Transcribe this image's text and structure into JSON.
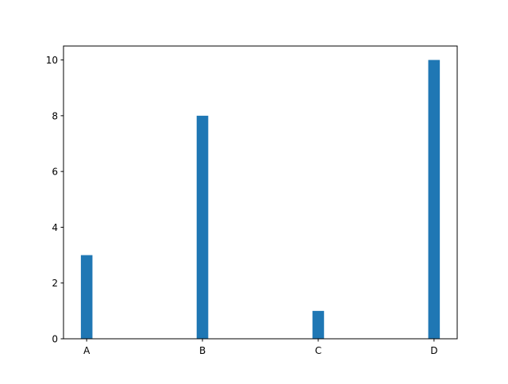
{
  "chart_data": {
    "type": "bar",
    "categories": [
      "A",
      "B",
      "C",
      "D"
    ],
    "values": [
      3,
      8,
      1,
      10
    ],
    "title": "",
    "xlabel": "",
    "ylabel": "",
    "ylim": [
      0,
      10.5
    ],
    "xlim": [
      -0.2,
      3.2
    ],
    "bar_width": 0.1,
    "yticks": [
      0,
      2,
      4,
      6,
      8,
      10
    ],
    "grid": false,
    "bar_color": "#1f77b4"
  }
}
